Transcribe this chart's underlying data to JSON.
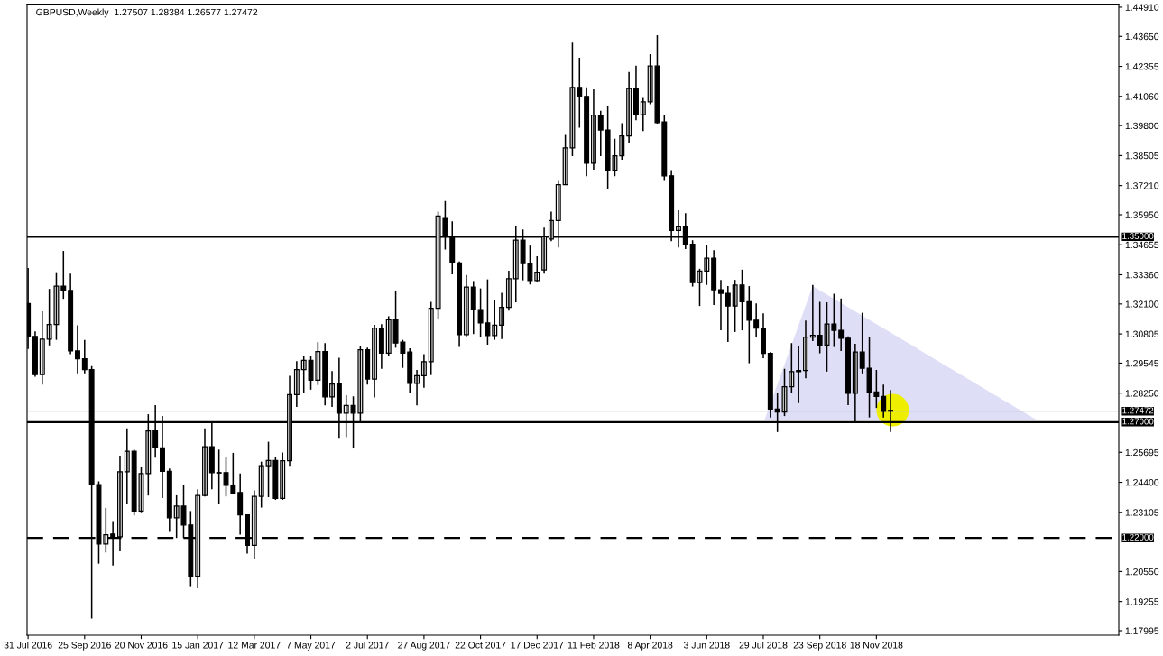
{
  "chart_data": {
    "type": "candlestick",
    "title": "GBPUSD,Weekly  1.27507 1.28384 1.26577 1.27472",
    "x": [
      "2016-07-31",
      "2016-08-07",
      "2016-08-14",
      "2016-08-21",
      "2016-08-28",
      "2016-09-04",
      "2016-09-11",
      "2016-09-18",
      "2016-09-25",
      "2016-10-02",
      "2016-10-09",
      "2016-10-16",
      "2016-10-23",
      "2016-10-30",
      "2016-11-06",
      "2016-11-13",
      "2016-11-20",
      "2016-11-27",
      "2016-12-04",
      "2016-12-11",
      "2016-12-18",
      "2016-12-25",
      "2017-01-01",
      "2017-01-08",
      "2017-01-15",
      "2017-01-22",
      "2017-01-29",
      "2017-02-05",
      "2017-02-12",
      "2017-02-19",
      "2017-02-26",
      "2017-03-05",
      "2017-03-12",
      "2017-03-19",
      "2017-03-26",
      "2017-04-02",
      "2017-04-09",
      "2017-04-16",
      "2017-04-23",
      "2017-04-30",
      "2017-05-07",
      "2017-05-14",
      "2017-05-21",
      "2017-05-28",
      "2017-06-04",
      "2017-06-11",
      "2017-06-18",
      "2017-06-25",
      "2017-07-02",
      "2017-07-09",
      "2017-07-16",
      "2017-07-23",
      "2017-07-30",
      "2017-08-06",
      "2017-08-13",
      "2017-08-20",
      "2017-08-27",
      "2017-09-03",
      "2017-09-10",
      "2017-09-17",
      "2017-09-24",
      "2017-10-01",
      "2017-10-08",
      "2017-10-15",
      "2017-10-22",
      "2017-10-29",
      "2017-11-05",
      "2017-11-12",
      "2017-11-19",
      "2017-11-26",
      "2017-12-03",
      "2017-12-10",
      "2017-12-17",
      "2017-12-24",
      "2017-12-31",
      "2018-01-07",
      "2018-01-14",
      "2018-01-21",
      "2018-01-28",
      "2018-02-04",
      "2018-02-11",
      "2018-02-18",
      "2018-02-25",
      "2018-03-04",
      "2018-03-11",
      "2018-03-18",
      "2018-03-25",
      "2018-04-01",
      "2018-04-08",
      "2018-04-15",
      "2018-04-22",
      "2018-04-29",
      "2018-05-06",
      "2018-05-13",
      "2018-05-20",
      "2018-05-27",
      "2018-06-03",
      "2018-06-10",
      "2018-06-17",
      "2018-06-24",
      "2018-07-01",
      "2018-07-08",
      "2018-07-15",
      "2018-07-22",
      "2018-07-29",
      "2018-08-05",
      "2018-08-12",
      "2018-08-19",
      "2018-08-26",
      "2018-09-02",
      "2018-09-09",
      "2018-09-16",
      "2018-09-23",
      "2018-09-30",
      "2018-10-07",
      "2018-10-14",
      "2018-10-21",
      "2018-10-28",
      "2018-11-04",
      "2018-11-11",
      "2018-11-18",
      "2018-11-25",
      "2018-12-02"
    ],
    "ohlc": [
      [
        1.3212,
        1.3365,
        1.3016,
        1.307
      ],
      [
        1.307,
        1.3092,
        1.2896,
        1.2905
      ],
      [
        1.2905,
        1.3178,
        1.2862,
        1.3058
      ],
      [
        1.3058,
        1.3275,
        1.3031,
        1.3121
      ],
      [
        1.3121,
        1.3347,
        1.3055,
        1.3287
      ],
      [
        1.3287,
        1.3439,
        1.3232,
        1.3268
      ],
      [
        1.3268,
        1.3341,
        1.2993,
        1.3007
      ],
      [
        1.3007,
        1.3118,
        1.291,
        1.2973
      ],
      [
        1.2973,
        1.3055,
        1.291,
        1.2927
      ],
      [
        1.2927,
        1.2942,
        1.1852,
        1.243
      ],
      [
        1.243,
        1.2444,
        1.2089,
        1.2174
      ],
      [
        1.2174,
        1.233,
        1.2137,
        1.2214
      ],
      [
        1.2217,
        1.2273,
        1.2081,
        1.2205
      ],
      [
        1.2205,
        1.2555,
        1.2142,
        1.2485
      ],
      [
        1.2485,
        1.2673,
        1.2348,
        1.2574
      ],
      [
        1.2574,
        1.2581,
        1.2297,
        1.2316
      ],
      [
        1.2316,
        1.2507,
        1.2311,
        1.2478
      ],
      [
        1.2478,
        1.2734,
        1.2383,
        1.2662
      ],
      [
        1.2662,
        1.2773,
        1.2546,
        1.2589
      ],
      [
        1.2589,
        1.2726,
        1.2372,
        1.2487
      ],
      [
        1.2487,
        1.25,
        1.2226,
        1.2287
      ],
      [
        1.2287,
        1.2384,
        1.22,
        1.2337
      ],
      [
        1.2337,
        1.243,
        1.22,
        1.2256
      ],
      [
        1.2256,
        1.2316,
        1.1992,
        1.2035
      ],
      [
        1.2035,
        1.241,
        1.1983,
        1.2383
      ],
      [
        1.2383,
        1.2673,
        1.2379,
        1.2594
      ],
      [
        1.2594,
        1.27,
        1.241,
        1.2482
      ],
      [
        1.2482,
        1.2581,
        1.2345,
        1.248
      ],
      [
        1.2482,
        1.255,
        1.2379,
        1.2427
      ],
      [
        1.2427,
        1.2567,
        1.2388,
        1.2393
      ],
      [
        1.2396,
        1.2478,
        1.2214,
        1.2299
      ],
      [
        1.2299,
        1.2299,
        1.2132,
        1.2168
      ],
      [
        1.2168,
        1.2405,
        1.2108,
        1.2379
      ],
      [
        1.2379,
        1.2529,
        1.2331,
        1.2512
      ],
      [
        1.2512,
        1.2615,
        1.2376,
        1.2534
      ],
      [
        1.2534,
        1.255,
        1.2364,
        1.2371
      ],
      [
        1.2371,
        1.2569,
        1.2364,
        1.2533
      ],
      [
        1.2533,
        1.29,
        1.2511,
        1.2818
      ],
      [
        1.2818,
        1.2963,
        1.2765,
        1.2927
      ],
      [
        1.2927,
        1.2985,
        1.2826,
        1.2966
      ],
      [
        1.2966,
        1.2985,
        1.284,
        1.2881
      ],
      [
        1.2881,
        1.3045,
        1.286,
        1.3004
      ],
      [
        1.3004,
        1.3041,
        1.2772,
        1.2809
      ],
      [
        1.2809,
        1.292,
        1.2765,
        1.2864
      ],
      [
        1.2864,
        1.2978,
        1.2632,
        1.2739
      ],
      [
        1.2739,
        1.2816,
        1.2635,
        1.2772
      ],
      [
        1.2772,
        1.2811,
        1.2586,
        1.2739
      ],
      [
        1.2739,
        1.3029,
        1.2703,
        1.3012
      ],
      [
        1.3012,
        1.3021,
        1.2862,
        1.2886
      ],
      [
        1.2886,
        1.312,
        1.2806,
        1.3106
      ],
      [
        1.3106,
        1.3123,
        1.293,
        1.2998
      ],
      [
        1.2998,
        1.3157,
        1.2987,
        1.3142
      ],
      [
        1.3142,
        1.3266,
        1.3021,
        1.3041
      ],
      [
        1.3045,
        1.3055,
        1.2934,
        1.2998
      ],
      [
        1.3002,
        1.3019,
        1.2828,
        1.2867
      ],
      [
        1.2867,
        1.2925,
        1.2772,
        1.29
      ],
      [
        1.29,
        1.2993,
        1.2848,
        1.2961
      ],
      [
        1.2961,
        1.3219,
        1.2903,
        1.3191
      ],
      [
        1.3191,
        1.3609,
        1.3147,
        1.359
      ],
      [
        1.3579,
        1.3654,
        1.3445,
        1.35
      ],
      [
        1.35,
        1.3567,
        1.3338,
        1.3387
      ],
      [
        1.3387,
        1.3393,
        1.3024,
        1.3077
      ],
      [
        1.3077,
        1.3335,
        1.307,
        1.3283
      ],
      [
        1.3283,
        1.3309,
        1.308,
        1.3186
      ],
      [
        1.3186,
        1.3277,
        1.3065,
        1.3128
      ],
      [
        1.3128,
        1.3316,
        1.3034,
        1.3074
      ],
      [
        1.3074,
        1.3225,
        1.3055,
        1.3118
      ],
      [
        1.3118,
        1.3258,
        1.3058,
        1.3195
      ],
      [
        1.3195,
        1.3353,
        1.3181,
        1.3319
      ],
      [
        1.3319,
        1.3546,
        1.3217,
        1.3485
      ],
      [
        1.3485,
        1.3532,
        1.3312,
        1.3384
      ],
      [
        1.3384,
        1.3462,
        1.3294,
        1.3311
      ],
      [
        1.3311,
        1.3416,
        1.3307,
        1.3347
      ],
      [
        1.3357,
        1.3539,
        1.3341,
        1.35
      ],
      [
        1.349,
        1.3609,
        1.3481,
        1.357
      ],
      [
        1.357,
        1.3741,
        1.3454,
        1.3725
      ],
      [
        1.3725,
        1.394,
        1.3725,
        1.3884
      ],
      [
        1.3884,
        1.4338,
        1.3848,
        1.4145
      ],
      [
        1.4145,
        1.4273,
        1.3971,
        1.4106
      ],
      [
        1.4106,
        1.4145,
        1.3761,
        1.3817
      ],
      [
        1.3817,
        1.4136,
        1.379,
        1.4025
      ],
      [
        1.4025,
        1.4044,
        1.3848,
        1.3961
      ],
      [
        1.3961,
        1.4065,
        1.3706,
        1.3787
      ],
      [
        1.3787,
        1.3923,
        1.3761,
        1.385
      ],
      [
        1.385,
        1.399,
        1.3833,
        1.3935
      ],
      [
        1.3935,
        1.4211,
        1.3906,
        1.414
      ],
      [
        1.414,
        1.4239,
        1.4003,
        1.4027
      ],
      [
        1.4027,
        1.4099,
        1.3956,
        1.4082
      ],
      [
        1.4082,
        1.4288,
        1.4072,
        1.4237
      ],
      [
        1.4237,
        1.437,
        1.3988,
        1.3993
      ],
      [
        1.3996,
        1.4024,
        1.3741,
        1.3763
      ],
      [
        1.3763,
        1.3788,
        1.3481,
        1.3527
      ],
      [
        1.3527,
        1.3614,
        1.3454,
        1.3543
      ],
      [
        1.3543,
        1.3602,
        1.3447,
        1.3468
      ],
      [
        1.3468,
        1.3485,
        1.3285,
        1.3302
      ],
      [
        1.3302,
        1.3362,
        1.3201,
        1.3352
      ],
      [
        1.3352,
        1.3466,
        1.3292,
        1.3408
      ],
      [
        1.3408,
        1.3442,
        1.3205,
        1.3271
      ],
      [
        1.3271,
        1.3314,
        1.3096,
        1.3256
      ],
      [
        1.3256,
        1.3287,
        1.3046,
        1.3201
      ],
      [
        1.3201,
        1.3314,
        1.3089,
        1.3292
      ],
      [
        1.3292,
        1.3358,
        1.3096,
        1.322
      ],
      [
        1.322,
        1.3287,
        1.2954,
        1.314
      ],
      [
        1.314,
        1.3212,
        1.3067,
        1.3106
      ],
      [
        1.3106,
        1.3169,
        1.2976,
        1.2997
      ],
      [
        1.2997,
        1.3002,
        1.272,
        1.2756
      ],
      [
        1.2756,
        1.2824,
        1.2657,
        1.2743
      ],
      [
        1.2743,
        1.293,
        1.2726,
        1.2853
      ],
      [
        1.2853,
        1.3041,
        1.2826,
        1.2918
      ],
      [
        1.2918,
        1.3027,
        1.2782,
        1.2923
      ],
      [
        1.2923,
        1.3138,
        1.2889,
        1.3067
      ],
      [
        1.3067,
        1.3292,
        1.305,
        1.3075
      ],
      [
        1.3075,
        1.3219,
        1.2997,
        1.3033
      ],
      [
        1.3033,
        1.3217,
        1.2918,
        1.3123
      ],
      [
        1.3123,
        1.3254,
        1.3024,
        1.3096
      ],
      [
        1.3096,
        1.3234,
        1.3007,
        1.3062
      ],
      [
        1.3062,
        1.307,
        1.2773,
        1.2824
      ],
      [
        1.2824,
        1.3038,
        1.2695,
        1.3002
      ],
      [
        1.3002,
        1.3172,
        1.291,
        1.2932
      ],
      [
        1.2932,
        1.3068,
        1.272,
        1.283
      ],
      [
        1.283,
        1.2925,
        1.2761,
        1.2811
      ],
      [
        1.2811,
        1.2862,
        1.272,
        1.2746
      ],
      [
        1.27507,
        1.28384,
        1.26577,
        1.27472
      ]
    ],
    "xlim": [
      "2016-07-30",
      "2019-07-16"
    ],
    "xticks": [
      {
        "value": "2016-07-31",
        "label": "31 Jul 2016"
      },
      {
        "value": "2016-09-25",
        "label": "25 Sep 2016"
      },
      {
        "value": "2016-11-20",
        "label": "20 Nov 2016"
      },
      {
        "value": "2017-01-15",
        "label": "15 Jan 2017"
      },
      {
        "value": "2017-03-12",
        "label": "12 Mar 2017"
      },
      {
        "value": "2017-05-07",
        "label": "7 May 2017"
      },
      {
        "value": "2017-07-02",
        "label": "2 Jul 2017"
      },
      {
        "value": "2017-08-27",
        "label": "27 Aug 2017"
      },
      {
        "value": "2017-10-22",
        "label": "22 Oct 2017"
      },
      {
        "value": "2017-12-17",
        "label": "17 Dec 2017"
      },
      {
        "value": "2018-02-11",
        "label": "11 Feb 2018"
      },
      {
        "value": "2018-04-08",
        "label": "8 Apr 2018"
      },
      {
        "value": "2018-06-03",
        "label": "3 Jun 2018"
      },
      {
        "value": "2018-07-29",
        "label": "29 Jul 2018"
      },
      {
        "value": "2018-09-23",
        "label": "23 Sep 2018"
      },
      {
        "value": "2018-11-18",
        "label": "18 Nov 2018"
      }
    ],
    "ylim": [
      1.178,
      1.4504
    ],
    "yticks": [
      {
        "value": 1.4491,
        "label": "1.44910"
      },
      {
        "value": 1.4365,
        "label": "1.43650"
      },
      {
        "value": 1.42355,
        "label": "1.42355"
      },
      {
        "value": 1.4106,
        "label": "1.41060"
      },
      {
        "value": 1.398,
        "label": "1.39800"
      },
      {
        "value": 1.38505,
        "label": "1.38505"
      },
      {
        "value": 1.3721,
        "label": "1.37210"
      },
      {
        "value": 1.3595,
        "label": "1.35950"
      },
      {
        "value": 1.34655,
        "label": "1.34655"
      },
      {
        "value": 1.3336,
        "label": "1.33360"
      },
      {
        "value": 1.321,
        "label": "1.32100"
      },
      {
        "value": 1.30805,
        "label": "1.30805"
      },
      {
        "value": 1.29545,
        "label": "1.29545"
      },
      {
        "value": 1.2825,
        "label": "1.28250"
      },
      {
        "value": 1.25695,
        "label": "1.25695"
      },
      {
        "value": 1.244,
        "label": "1.24400"
      },
      {
        "value": 1.23105,
        "label": "1.23105"
      },
      {
        "value": 1.2055,
        "label": "1.20550"
      },
      {
        "value": 1.19255,
        "label": "1.19255"
      },
      {
        "value": 1.17995,
        "label": "1.17995"
      }
    ],
    "ref_lines": [
      {
        "axis": "y",
        "value": 1.35,
        "label": "1.35000",
        "color": "#000000",
        "line_style": "solid"
      },
      {
        "axis": "y",
        "value": 1.27,
        "label": "1.27000",
        "color": "#000000",
        "line_style": "solid"
      },
      {
        "axis": "y",
        "value": 1.22,
        "label": "1.22000",
        "color": "#000000",
        "line_style": "dashed"
      },
      {
        "axis": "y",
        "value": 1.27472,
        "label": "1.27472",
        "color": "#c0c0c0",
        "line_style": "solid"
      }
    ],
    "grid": false
  }
}
